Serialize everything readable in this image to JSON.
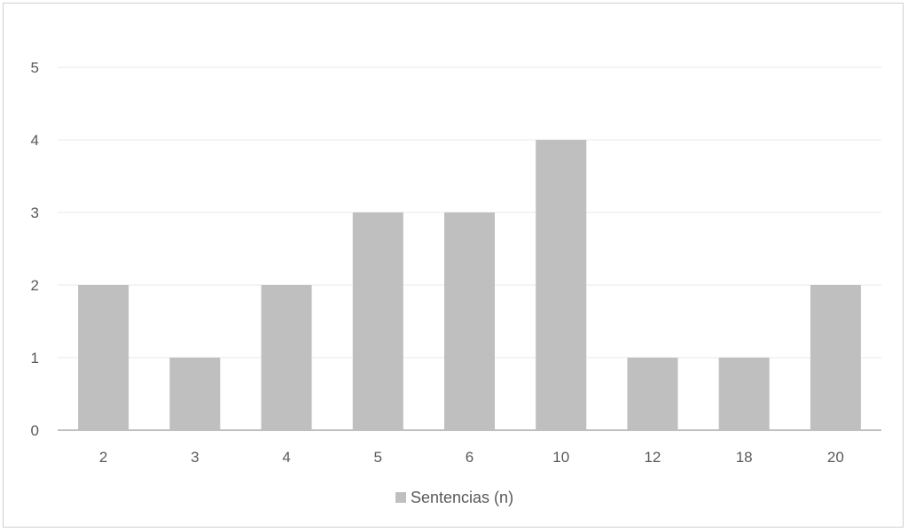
{
  "chart_data": {
    "type": "bar",
    "categories": [
      "2",
      "3",
      "4",
      "5",
      "6",
      "10",
      "12",
      "18",
      "20"
    ],
    "series": [
      {
        "name": "Sentencias (n)",
        "values": [
          2,
          1,
          2,
          3,
          3,
          4,
          1,
          1,
          2
        ],
        "color": "#bfbfbf"
      }
    ],
    "title": "",
    "xlabel": "",
    "ylabel": "",
    "ylim": [
      0,
      5
    ],
    "yticks": [
      "0",
      "1",
      "2",
      "3",
      "4",
      "5"
    ],
    "grid": true,
    "legend": "bottom-center",
    "colors": {
      "bar": "#bfbfbf",
      "grid": "#e8e8e8",
      "axis": "#bfbfbf",
      "text": "#595959"
    }
  }
}
